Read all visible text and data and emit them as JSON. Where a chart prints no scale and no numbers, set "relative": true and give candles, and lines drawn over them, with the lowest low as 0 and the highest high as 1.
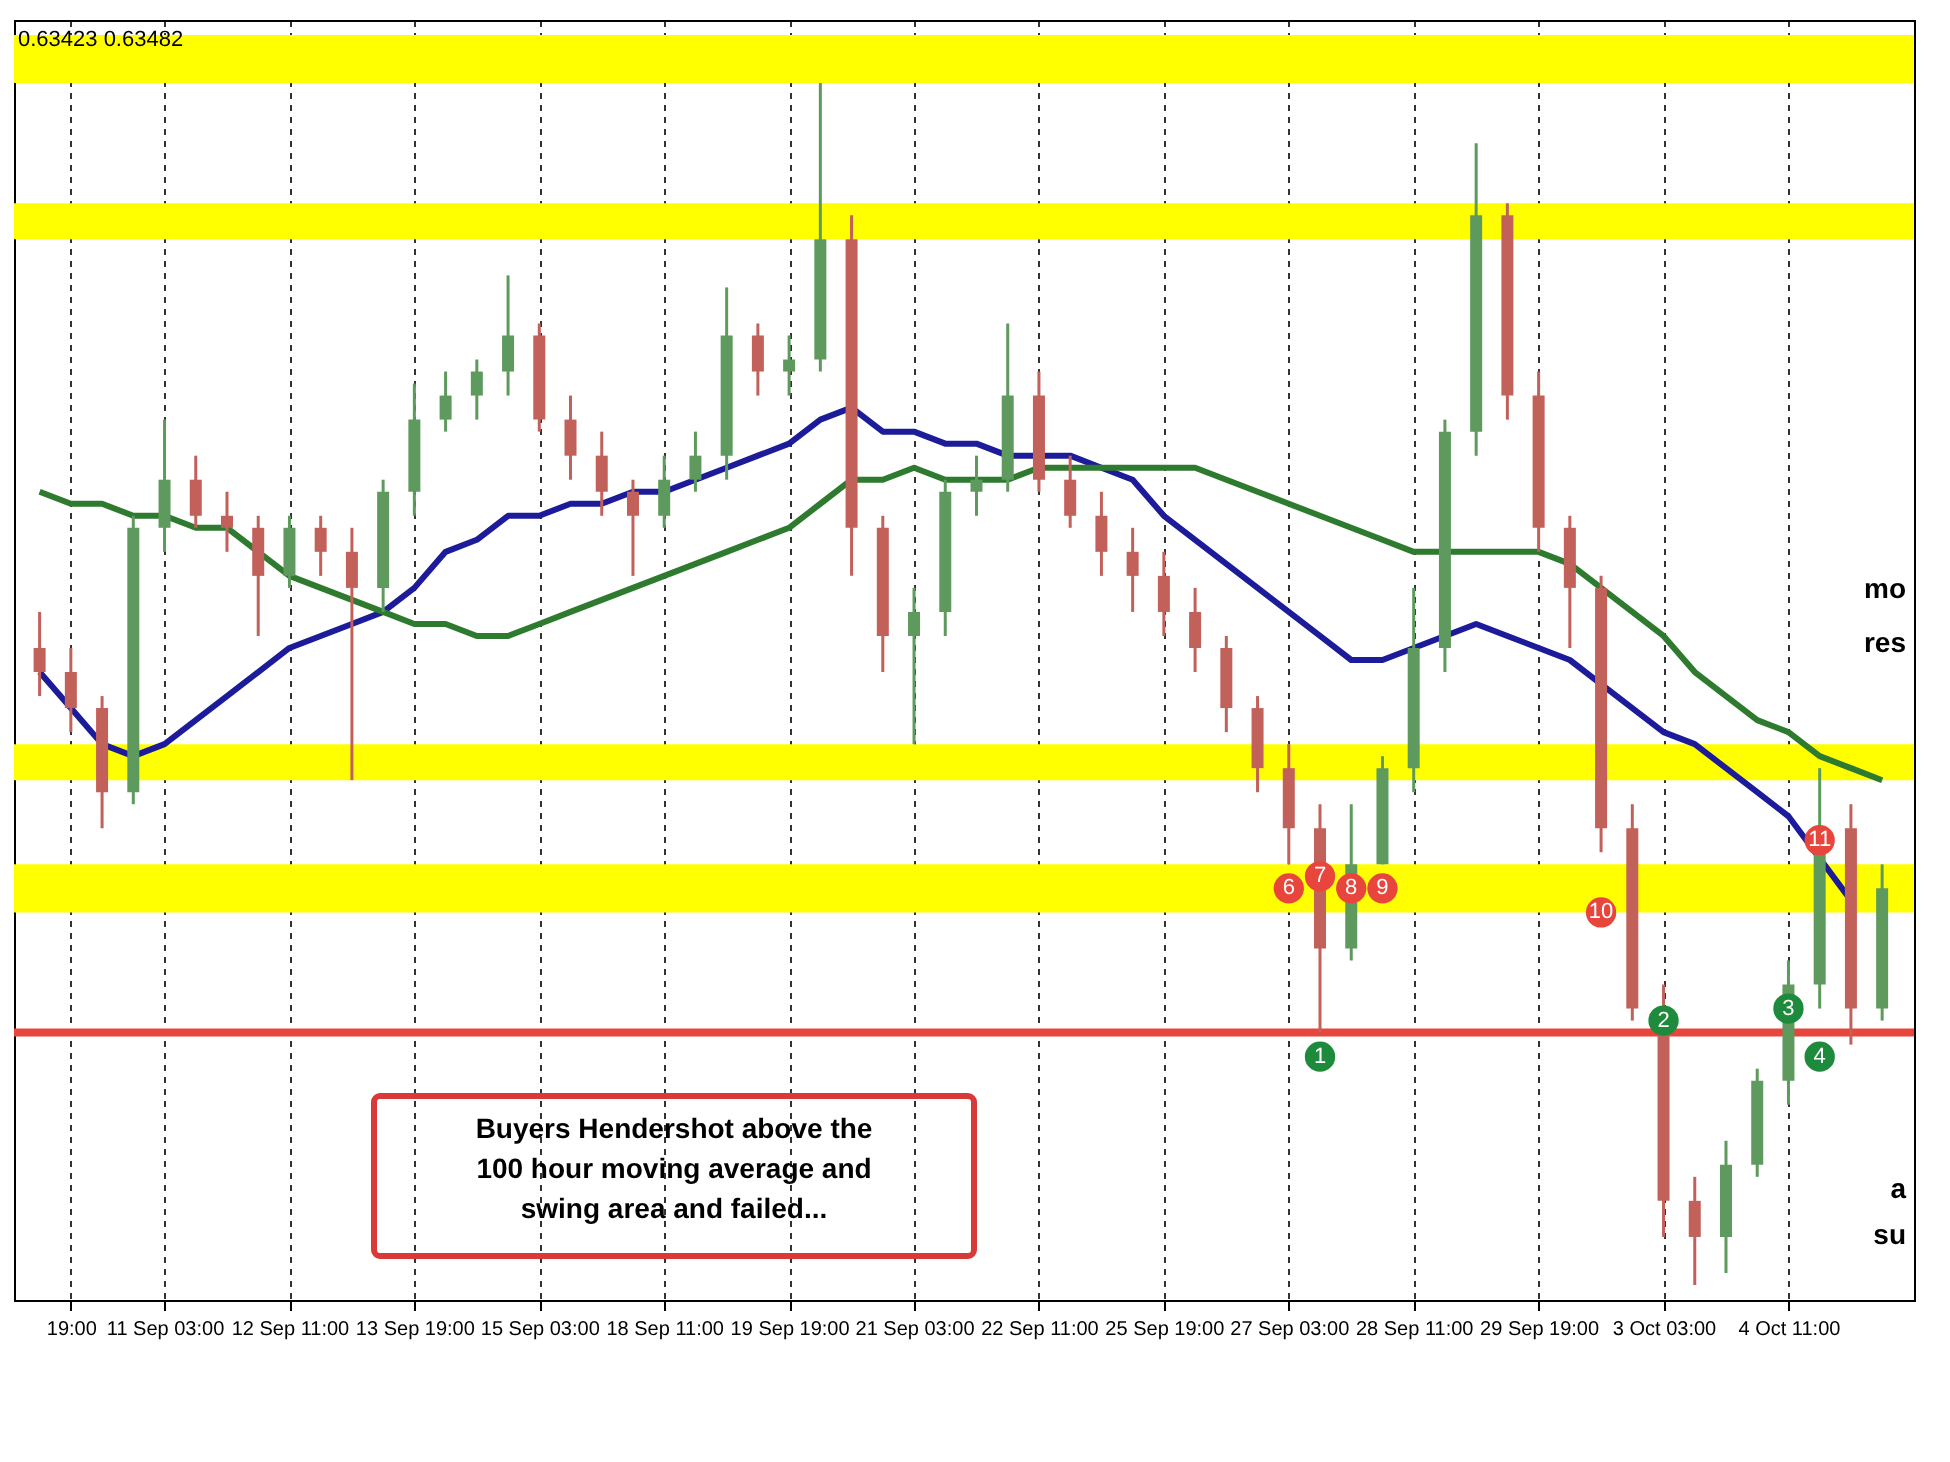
{
  "chart_data": {
    "type": "candlestick",
    "relative": true,
    "categories": [
      null,
      "19:00",
      null,
      null,
      "11 Sep 03:00",
      null,
      null,
      null,
      "12 Sep 11:00",
      null,
      null,
      null,
      "13 Sep 19:00",
      null,
      null,
      null,
      "15 Sep 03:00",
      null,
      null,
      null,
      "18 Sep 11:00",
      null,
      null,
      null,
      "19 Sep 19:00",
      null,
      null,
      null,
      "21 Sep 03:00",
      null,
      null,
      null,
      "22 Sep 11:00",
      null,
      null,
      null,
      "25 Sep 19:00",
      null,
      null,
      null,
      "27 Sep 03:00",
      null,
      null,
      null,
      "28 Sep 11:00",
      null,
      null,
      null,
      "29 Sep 19:00",
      null,
      null,
      null,
      "3 Oct 03:00",
      null,
      null,
      null,
      "4 Oct 11:00",
      null,
      null,
      null
    ],
    "grid": "x",
    "colors": [
      "#c2605a",
      "#c2605a",
      "#c2605a",
      "#5e9a5e",
      "#5e9a5e",
      "#c2605a",
      "#c2605a",
      "#c2605a",
      "#5e9a5e",
      "#c2605a",
      "#c2605a",
      "#5e9a5e",
      "#5e9a5e",
      "#5e9a5e",
      "#5e9a5e",
      "#5e9a5e",
      "#c2605a",
      "#c2605a",
      "#c2605a",
      "#c2605a",
      "#5e9a5e",
      "#5e9a5e",
      "#5e9a5e",
      "#c2605a",
      "#5e9a5e",
      "#5e9a5e",
      "#c2605a",
      "#c2605a",
      "#5e9a5e",
      "#5e9a5e",
      "#5e9a5e",
      "#5e9a5e",
      "#c2605a",
      "#c2605a",
      "#c2605a",
      "#c2605a",
      "#c2605a",
      "#c2605a",
      "#c2605a",
      "#c2605a",
      "#c2605a",
      "#c2605a",
      "#5e9a5e",
      "#5e9a5e",
      "#5e9a5e",
      "#5e9a5e",
      "#5e9a5e",
      "#c2605a",
      "#c2605a",
      "#c2605a",
      "#c2605a",
      "#c2605a",
      "#c2605a",
      "#c2605a",
      "#5e9a5e",
      "#5e9a5e",
      "#5e9a5e",
      "#5e9a5e",
      "#c2605a",
      "#5e9a5e"
    ],
    "ohlc": [
      [
        0.53,
        0.56,
        0.49,
        0.51
      ],
      [
        0.51,
        0.53,
        0.46,
        0.48
      ],
      [
        0.48,
        0.49,
        0.38,
        0.41
      ],
      [
        0.41,
        0.64,
        0.4,
        0.63
      ],
      [
        0.63,
        0.72,
        0.61,
        0.67
      ],
      [
        0.67,
        0.69,
        0.63,
        0.64
      ],
      [
        0.64,
        0.66,
        0.61,
        0.63
      ],
      [
        0.63,
        0.64,
        0.54,
        0.59
      ],
      [
        0.59,
        0.64,
        0.58,
        0.63
      ],
      [
        0.63,
        0.64,
        0.59,
        0.61
      ],
      [
        0.61,
        0.63,
        0.42,
        0.58
      ],
      [
        0.58,
        0.67,
        0.56,
        0.66
      ],
      [
        0.66,
        0.75,
        0.64,
        0.72
      ],
      [
        0.72,
        0.76,
        0.71,
        0.74
      ],
      [
        0.74,
        0.77,
        0.72,
        0.76
      ],
      [
        0.76,
        0.84,
        0.74,
        0.79
      ],
      [
        0.79,
        0.8,
        0.71,
        0.72
      ],
      [
        0.72,
        0.74,
        0.67,
        0.69
      ],
      [
        0.69,
        0.71,
        0.64,
        0.66
      ],
      [
        0.66,
        0.67,
        0.59,
        0.64
      ],
      [
        0.64,
        0.69,
        0.63,
        0.67
      ],
      [
        0.67,
        0.71,
        0.66,
        0.69
      ],
      [
        0.69,
        0.83,
        0.67,
        0.79
      ],
      [
        0.79,
        0.8,
        0.74,
        0.76
      ],
      [
        0.76,
        0.79,
        0.74,
        0.77
      ],
      [
        0.77,
        1.0,
        0.76,
        0.87
      ],
      [
        0.87,
        0.89,
        0.59,
        0.63
      ],
      [
        0.63,
        0.64,
        0.51,
        0.54
      ],
      [
        0.54,
        0.58,
        0.45,
        0.56
      ],
      [
        0.56,
        0.67,
        0.54,
        0.66
      ],
      [
        0.66,
        0.69,
        0.64,
        0.67
      ],
      [
        0.67,
        0.8,
        0.66,
        0.74
      ],
      [
        0.74,
        0.76,
        0.66,
        0.67
      ],
      [
        0.67,
        0.69,
        0.63,
        0.64
      ],
      [
        0.64,
        0.66,
        0.59,
        0.61
      ],
      [
        0.61,
        0.63,
        0.56,
        0.59
      ],
      [
        0.59,
        0.61,
        0.54,
        0.56
      ],
      [
        0.56,
        0.58,
        0.51,
        0.53
      ],
      [
        0.53,
        0.54,
        0.46,
        0.48
      ],
      [
        0.48,
        0.49,
        0.41,
        0.43
      ],
      [
        0.43,
        0.45,
        0.35,
        0.38
      ],
      [
        0.38,
        0.4,
        0.21,
        0.28
      ],
      [
        0.28,
        0.4,
        0.27,
        0.35
      ],
      [
        0.35,
        0.44,
        0.35,
        0.43
      ],
      [
        0.43,
        0.58,
        0.41,
        0.53
      ],
      [
        0.53,
        0.72,
        0.51,
        0.71
      ],
      [
        0.71,
        0.95,
        0.69,
        0.89
      ],
      [
        0.89,
        0.9,
        0.72,
        0.74
      ],
      [
        0.74,
        0.76,
        0.61,
        0.63
      ],
      [
        0.63,
        0.64,
        0.53,
        0.58
      ],
      [
        0.58,
        0.59,
        0.36,
        0.38
      ],
      [
        0.38,
        0.4,
        0.22,
        0.23
      ],
      [
        0.23,
        0.25,
        0.04,
        0.07
      ],
      [
        0.07,
        0.09,
        0.0,
        0.04
      ],
      [
        0.04,
        0.12,
        0.01,
        0.1
      ],
      [
        0.1,
        0.18,
        0.09,
        0.17
      ],
      [
        0.17,
        0.27,
        0.15,
        0.25
      ],
      [
        0.25,
        0.43,
        0.23,
        0.38
      ],
      [
        0.38,
        0.4,
        0.2,
        0.23
      ],
      [
        0.23,
        0.35,
        0.22,
        0.33
      ]
    ],
    "series": [
      {
        "type": "line",
        "color": "#1c1c9a",
        "values": [
          0.51,
          0.48,
          0.45,
          0.44,
          0.45,
          0.47,
          0.49,
          0.51,
          0.53,
          0.54,
          0.55,
          0.56,
          0.58,
          0.61,
          0.62,
          0.64,
          0.64,
          0.65,
          0.65,
          0.66,
          0.66,
          0.67,
          0.68,
          0.69,
          0.7,
          0.72,
          0.73,
          0.71,
          0.71,
          0.7,
          0.7,
          0.69,
          0.69,
          0.69,
          0.68,
          0.67,
          0.64,
          0.62,
          0.6,
          0.58,
          0.56,
          0.54,
          0.52,
          0.52,
          0.53,
          0.54,
          0.55,
          0.54,
          0.53,
          0.52,
          0.5,
          0.48,
          0.46,
          0.45,
          0.43,
          0.41,
          0.39,
          null,
          0.32,
          null
        ]
      },
      {
        "type": "line",
        "color": "#2e7a2e",
        "values": [
          0.66,
          0.65,
          0.65,
          0.64,
          0.64,
          0.63,
          0.63,
          0.61,
          0.59,
          0.58,
          0.57,
          0.56,
          0.55,
          0.55,
          0.54,
          0.54,
          0.55,
          0.56,
          0.57,
          0.58,
          0.59,
          0.6,
          0.61,
          0.62,
          0.63,
          0.65,
          0.67,
          0.67,
          0.68,
          0.67,
          0.67,
          0.67,
          0.68,
          0.68,
          0.68,
          0.68,
          0.68,
          0.68,
          0.67,
          0.66,
          0.65,
          0.64,
          0.63,
          0.62,
          0.61,
          0.61,
          0.61,
          0.61,
          0.61,
          0.6,
          0.58,
          0.56,
          0.54,
          0.51,
          0.49,
          0.47,
          0.46,
          0.44,
          0.43,
          0.42
        ]
      },
      {
        "type": "scatter",
        "name": "6",
        "color": "#e8453c",
        "values": [
          null,
          null,
          null,
          null,
          null,
          null,
          null,
          null,
          null,
          null,
          null,
          null,
          null,
          null,
          null,
          null,
          null,
          null,
          null,
          null,
          null,
          null,
          null,
          null,
          null,
          null,
          null,
          null,
          null,
          null,
          null,
          null,
          null,
          null,
          null,
          null,
          null,
          null,
          null,
          null,
          0.33,
          null,
          null,
          null,
          null,
          null,
          null,
          null,
          null,
          null,
          null,
          null,
          null,
          null,
          null,
          null,
          null,
          null,
          null,
          null
        ]
      },
      {
        "type": "scatter",
        "name": "7",
        "color": "#e8453c",
        "values": [
          null,
          null,
          null,
          null,
          null,
          null,
          null,
          null,
          null,
          null,
          null,
          null,
          null,
          null,
          null,
          null,
          null,
          null,
          null,
          null,
          null,
          null,
          null,
          null,
          null,
          null,
          null,
          null,
          null,
          null,
          null,
          null,
          null,
          null,
          null,
          null,
          null,
          null,
          null,
          null,
          null,
          0.34,
          null,
          null,
          null,
          null,
          null,
          null,
          null,
          null,
          null,
          null,
          null,
          null,
          null,
          null,
          null,
          null,
          null,
          null
        ]
      },
      {
        "type": "scatter",
        "name": "8",
        "color": "#e8453c",
        "values": [
          null,
          null,
          null,
          null,
          null,
          null,
          null,
          null,
          null,
          null,
          null,
          null,
          null,
          null,
          null,
          null,
          null,
          null,
          null,
          null,
          null,
          null,
          null,
          null,
          null,
          null,
          null,
          null,
          null,
          null,
          null,
          null,
          null,
          null,
          null,
          null,
          null,
          null,
          null,
          null,
          null,
          null,
          0.33,
          null,
          null,
          null,
          null,
          null,
          null,
          null,
          null,
          null,
          null,
          null,
          null,
          null,
          null,
          null,
          null,
          null
        ]
      },
      {
        "type": "scatter",
        "name": "9",
        "color": "#e8453c",
        "values": [
          null,
          null,
          null,
          null,
          null,
          null,
          null,
          null,
          null,
          null,
          null,
          null,
          null,
          null,
          null,
          null,
          null,
          null,
          null,
          null,
          null,
          null,
          null,
          null,
          null,
          null,
          null,
          null,
          null,
          null,
          null,
          null,
          null,
          null,
          null,
          null,
          null,
          null,
          null,
          null,
          null,
          null,
          null,
          0.33,
          null,
          null,
          null,
          null,
          null,
          null,
          null,
          null,
          null,
          null,
          null,
          null,
          null,
          null,
          null,
          null
        ]
      },
      {
        "type": "scatter",
        "name": "10",
        "color": "#e8453c",
        "values": [
          null,
          null,
          null,
          null,
          null,
          null,
          null,
          null,
          null,
          null,
          null,
          null,
          null,
          null,
          null,
          null,
          null,
          null,
          null,
          null,
          null,
          null,
          null,
          null,
          null,
          null,
          null,
          null,
          null,
          null,
          null,
          null,
          null,
          null,
          null,
          null,
          null,
          null,
          null,
          null,
          null,
          null,
          null,
          null,
          null,
          null,
          null,
          null,
          null,
          null,
          0.31,
          null,
          null,
          null,
          null,
          null,
          null,
          null,
          null,
          null
        ]
      },
      {
        "type": "scatter",
        "name": "11",
        "color": "#e8453c",
        "values": [
          null,
          null,
          null,
          null,
          null,
          null,
          null,
          null,
          null,
          null,
          null,
          null,
          null,
          null,
          null,
          null,
          null,
          null,
          null,
          null,
          null,
          null,
          null,
          null,
          null,
          null,
          null,
          null,
          null,
          null,
          null,
          null,
          null,
          null,
          null,
          null,
          null,
          null,
          null,
          null,
          null,
          null,
          null,
          null,
          null,
          null,
          null,
          null,
          null,
          null,
          null,
          null,
          null,
          null,
          null,
          null,
          null,
          0.37,
          null,
          null
        ]
      },
      {
        "type": "scatter",
        "name": "1",
        "color": "#1e8a3c",
        "values": [
          null,
          null,
          null,
          null,
          null,
          null,
          null,
          null,
          null,
          null,
          null,
          null,
          null,
          null,
          null,
          null,
          null,
          null,
          null,
          null,
          null,
          null,
          null,
          null,
          null,
          null,
          null,
          null,
          null,
          null,
          null,
          null,
          null,
          null,
          null,
          null,
          null,
          null,
          null,
          null,
          null,
          0.19,
          null,
          null,
          null,
          null,
          null,
          null,
          null,
          null,
          null,
          null,
          null,
          null,
          null,
          null,
          null,
          null,
          null,
          null
        ]
      },
      {
        "type": "scatter",
        "name": "2",
        "color": "#1e8a3c",
        "values": [
          null,
          null,
          null,
          null,
          null,
          null,
          null,
          null,
          null,
          null,
          null,
          null,
          null,
          null,
          null,
          null,
          null,
          null,
          null,
          null,
          null,
          null,
          null,
          null,
          null,
          null,
          null,
          null,
          null,
          null,
          null,
          null,
          null,
          null,
          null,
          null,
          null,
          null,
          null,
          null,
          null,
          null,
          null,
          null,
          null,
          null,
          null,
          null,
          null,
          null,
          null,
          null,
          0.22,
          null,
          null,
          null,
          null,
          null,
          null,
          null
        ]
      },
      {
        "type": "scatter",
        "name": "3",
        "color": "#1e8a3c",
        "values": [
          null,
          null,
          null,
          null,
          null,
          null,
          null,
          null,
          null,
          null,
          null,
          null,
          null,
          null,
          null,
          null,
          null,
          null,
          null,
          null,
          null,
          null,
          null,
          null,
          null,
          null,
          null,
          null,
          null,
          null,
          null,
          null,
          null,
          null,
          null,
          null,
          null,
          null,
          null,
          null,
          null,
          null,
          null,
          null,
          null,
          null,
          null,
          null,
          null,
          null,
          null,
          null,
          null,
          null,
          null,
          null,
          0.23,
          null,
          null,
          null
        ]
      },
      {
        "type": "scatter",
        "name": "4",
        "color": "#1e8a3c",
        "values": [
          null,
          null,
          null,
          null,
          null,
          null,
          null,
          null,
          null,
          null,
          null,
          null,
          null,
          null,
          null,
          null,
          null,
          null,
          null,
          null,
          null,
          null,
          null,
          null,
          null,
          null,
          null,
          null,
          null,
          null,
          null,
          null,
          null,
          null,
          null,
          null,
          null,
          null,
          null,
          null,
          null,
          null,
          null,
          null,
          null,
          null,
          null,
          null,
          null,
          null,
          null,
          null,
          null,
          null,
          null,
          null,
          null,
          0.19,
          null,
          null
        ]
      }
    ],
    "bands": [
      {
        "axis": "y",
        "from": 1.0,
        "to": 1.04,
        "color": "#ffff00"
      },
      {
        "axis": "y",
        "from": 0.87,
        "to": 0.9,
        "color": "#ffff00"
      },
      {
        "axis": "y",
        "from": 0.42,
        "to": 0.45,
        "color": "#ffff00"
      },
      {
        "axis": "y",
        "from": 0.31,
        "to": 0.35,
        "color": "#ffff00"
      }
    ],
    "ref_lines": [
      {
        "axis": "y",
        "value": 0.21,
        "color": "#e8453c"
      }
    ],
    "annotations": [
      "0.63423 0.63482",
      "Buyers Hendershot above the 100 hour moving average and swing area and failed...",
      "mo",
      "res",
      "a",
      "su"
    ]
  }
}
